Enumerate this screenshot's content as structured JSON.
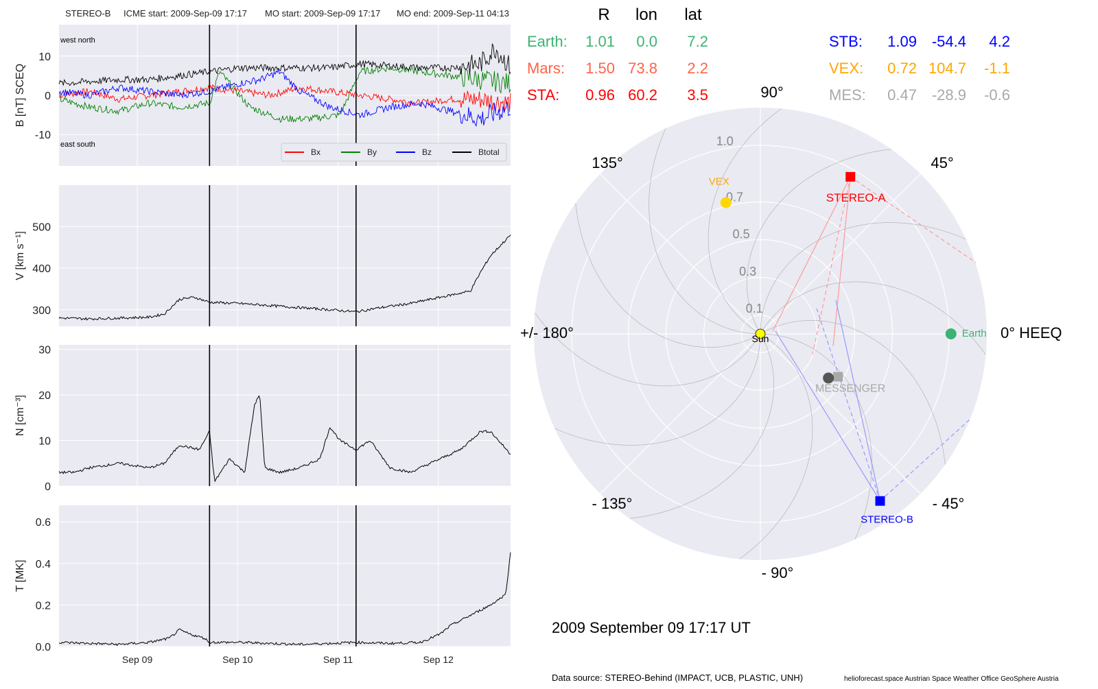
{
  "header": {
    "spacecraft": "STEREO-B",
    "icme_start": "ICME start: 2009-Sep-09 17:17",
    "mo_start": "MO start: 2009-Sep-09 17:17",
    "mo_end": "MO end: 2009-Sep-11 04:13"
  },
  "footer": {
    "date_label": "2009 September 09  17:17 UT",
    "data_source": "Data source: STEREO-Behind (IMPACT, UCB, PLASTIC, UNH)",
    "credits": "helioforecast.space   Austrian Space Weather Office   GeoSphere Austria"
  },
  "colors": {
    "panel_bg": "#eaeaf2",
    "bx": "#ff0000",
    "by": "#008000",
    "bz": "#0000ff",
    "btotal": "#000000",
    "earth": "#3cb371",
    "mars": "#ff6347",
    "sta": "#ff0000",
    "stb": "#0000ff",
    "vex": "#ffa500",
    "mes": "#a9a9a9",
    "sun": "#ffff00"
  },
  "position_table": {
    "headers": [
      "R",
      "lon",
      "lat"
    ],
    "left": [
      {
        "name": "Earth:",
        "r": "1.01",
        "lon": "0.0",
        "lat": "7.2",
        "color": "#3cb371"
      },
      {
        "name": "Mars:",
        "r": "1.50",
        "lon": "73.8",
        "lat": "2.2",
        "color": "#ff6347"
      },
      {
        "name": "STA:",
        "r": "0.96",
        "lon": "60.2",
        "lat": "3.5",
        "color": "#ff0000"
      }
    ],
    "right": [
      {
        "name": "STB:",
        "r": "1.09",
        "lon": "-54.4",
        "lat": "4.2",
        "color": "#0000ff"
      },
      {
        "name": "VEX:",
        "r": "0.72",
        "lon": "104.7",
        "lat": "-1.1",
        "color": "#ffa500"
      },
      {
        "name": "MES:",
        "r": "0.47",
        "lon": "-28.9",
        "lat": "-0.6",
        "color": "#a9a9a9"
      }
    ]
  },
  "polar": {
    "angle_labels": [
      {
        "deg": 90,
        "text": "90°"
      },
      {
        "deg": 45,
        "text": "45°"
      },
      {
        "deg": 0,
        "text": "0° HEEQ"
      },
      {
        "deg": -45,
        "text": "- 45°"
      },
      {
        "deg": -90,
        "text": "- 90°"
      },
      {
        "deg": -135,
        "text": "- 135°"
      },
      {
        "deg": 180,
        "text": "+/- 180°"
      },
      {
        "deg": 135,
        "text": "135°"
      }
    ],
    "r_labels": [
      "0.1",
      "0.3",
      "0.5",
      "0.7",
      "1.0"
    ],
    "r_ticks": [
      0.1,
      0.3,
      0.5,
      0.7,
      1.0
    ],
    "r_max": 1.2,
    "bodies": [
      {
        "name": "Sun",
        "label": "Sun",
        "r": 0,
        "lon": 0,
        "shape": "circle",
        "color": "#ffff00",
        "text_color": "#000000"
      },
      {
        "name": "Earth",
        "label": "Earth",
        "r": 1.01,
        "lon": 0.0,
        "shape": "circle",
        "color": "#3cb371",
        "text_color": "#3cb371"
      },
      {
        "name": "STEREO-A",
        "label": "STEREO-A",
        "r": 0.96,
        "lon": 60.2,
        "shape": "square",
        "color": "#ff0000",
        "text_color": "#ff0000"
      },
      {
        "name": "STEREO-B",
        "label": "STEREO-B",
        "r": 1.09,
        "lon": -54.4,
        "shape": "square",
        "color": "#0000ff",
        "text_color": "#0000ff"
      },
      {
        "name": "VEX",
        "label": "VEX",
        "r": 0.72,
        "lon": 104.7,
        "shape": "circle",
        "color": "#ffd700",
        "text_color": "#ffa500"
      },
      {
        "name": "MESSENGER",
        "label": "MESSENGER",
        "r": 0.47,
        "lon": -28.9,
        "shape": "square",
        "color": "#a9a9a9",
        "text_color": "#a9a9a9"
      },
      {
        "name": "Mercury",
        "label": "",
        "r": 0.43,
        "lon": -33,
        "shape": "circle",
        "color": "#555555",
        "text_color": "#555555"
      }
    ]
  },
  "chart_data": [
    {
      "type": "line",
      "title": "STEREO-B    ICME start: 2009-Sep-09 17:17    MO start: 2009-Sep-09 17:17    MO end: 2009-Sep-11 04:13",
      "ylabel": "B [nT] SCEQ",
      "ylim": [
        -18,
        18
      ],
      "yticks": [
        10,
        0,
        -10
      ],
      "xlim": [
        0,
        4.5
      ],
      "xticks": [
        {
          "v": 0.78,
          "label": "Sep 09"
        },
        {
          "v": 1.78,
          "label": "Sep 10"
        },
        {
          "v": 2.78,
          "label": "Sep 11"
        },
        {
          "v": 3.78,
          "label": "Sep 12"
        }
      ],
      "vlines": [
        1.5,
        2.96
      ],
      "legend": [
        "Bx",
        "By",
        "Bz",
        "Btotal"
      ],
      "annotations": [
        "west    north",
        "east    south"
      ],
      "series": [
        {
          "name": "Bx",
          "color": "#ff0000",
          "x": [
            0,
            0.3,
            0.6,
            0.9,
            1.2,
            1.5,
            1.8,
            2.1,
            2.4,
            2.7,
            3.0,
            3.3,
            3.6,
            3.9,
            4.2,
            4.5
          ],
          "y": [
            0,
            1,
            -1,
            0,
            1,
            2,
            1,
            0,
            2,
            1,
            0,
            -1,
            -2,
            -1,
            -1,
            -2
          ]
        },
        {
          "name": "By",
          "color": "#008000",
          "x": [
            0,
            0.3,
            0.6,
            0.9,
            1.2,
            1.5,
            1.6,
            1.9,
            2.2,
            2.5,
            2.8,
            3.0,
            3.3,
            3.6,
            3.9,
            4.2,
            4.5
          ],
          "y": [
            -1,
            -3,
            -4,
            -2,
            -3,
            -2,
            6,
            -3,
            -6,
            -6,
            -5,
            6,
            7,
            6,
            5,
            4,
            3
          ]
        },
        {
          "name": "Bz",
          "color": "#0000ff",
          "x": [
            0,
            0.3,
            0.6,
            0.9,
            1.2,
            1.5,
            1.8,
            2.0,
            2.2,
            2.4,
            2.7,
            3.0,
            3.3,
            3.6,
            3.9,
            4.2,
            4.5
          ],
          "y": [
            1,
            0,
            2,
            1,
            0,
            1,
            3,
            4,
            6,
            1,
            -3,
            -5,
            -3,
            -2,
            -4,
            -6,
            -3
          ]
        },
        {
          "name": "Btotal",
          "color": "#000000",
          "x": [
            0,
            0.3,
            0.6,
            0.9,
            1.2,
            1.5,
            1.8,
            2.1,
            2.4,
            2.7,
            3.0,
            3.3,
            3.6,
            3.9,
            4.2,
            4.35,
            4.5
          ],
          "y": [
            3,
            3.5,
            4,
            4,
            5,
            6,
            7,
            7,
            7,
            7,
            8,
            7.5,
            7,
            7,
            8,
            12,
            7
          ]
        }
      ]
    },
    {
      "type": "line",
      "ylabel": "V [km s⁻¹]",
      "ylim": [
        260,
        600
      ],
      "yticks": [
        500,
        400,
        300
      ],
      "xlim": [
        0,
        4.5
      ],
      "xticks": [
        {
          "v": 0.78
        },
        {
          "v": 1.78
        },
        {
          "v": 2.78
        },
        {
          "v": 3.78
        }
      ],
      "vlines": [
        1.5,
        2.96
      ],
      "series": [
        {
          "name": "V",
          "color": "#000000",
          "x": [
            0,
            0.3,
            0.6,
            0.9,
            1.05,
            1.2,
            1.35,
            1.5,
            1.8,
            2.1,
            2.4,
            2.7,
            2.96,
            3.2,
            3.5,
            3.8,
            4.1,
            4.2,
            4.3,
            4.4,
            4.5
          ],
          "y": [
            280,
            278,
            280,
            282,
            290,
            325,
            330,
            318,
            315,
            310,
            305,
            300,
            295,
            305,
            315,
            330,
            345,
            390,
            430,
            455,
            480
          ]
        }
      ]
    },
    {
      "type": "line",
      "ylabel": "N [cm⁻³]",
      "ylim": [
        0,
        31
      ],
      "yticks": [
        30,
        20,
        10,
        0
      ],
      "xlim": [
        0,
        4.5
      ],
      "xticks": [
        {
          "v": 0.78
        },
        {
          "v": 1.78
        },
        {
          "v": 2.78
        },
        {
          "v": 3.78
        }
      ],
      "vlines": [
        1.5,
        2.96
      ],
      "series": [
        {
          "name": "N",
          "color": "#000000",
          "x": [
            0,
            0.15,
            0.3,
            0.6,
            0.9,
            1.05,
            1.2,
            1.4,
            1.5,
            1.55,
            1.7,
            1.85,
            1.95,
            2.0,
            2.05,
            2.2,
            2.4,
            2.6,
            2.7,
            2.8,
            2.96,
            3.1,
            3.3,
            3.5,
            3.8,
            4.0,
            4.2,
            4.3,
            4.5
          ],
          "y": [
            3,
            3,
            4,
            5,
            4,
            5,
            9,
            8,
            12,
            1,
            6,
            3,
            18,
            20,
            4,
            3,
            4,
            6,
            13,
            10,
            8,
            10,
            4,
            3,
            6,
            8,
            12,
            12,
            7
          ]
        }
      ]
    },
    {
      "type": "line",
      "ylabel": "T [MK]",
      "ylim": [
        0,
        0.68
      ],
      "yticks": [
        0.6,
        0.4,
        0.2,
        0.0
      ],
      "xlim": [
        0,
        4.5
      ],
      "xticks": [
        {
          "v": 0.78,
          "label": "Sep 09"
        },
        {
          "v": 1.78,
          "label": "Sep 10"
        },
        {
          "v": 2.78,
          "label": "Sep 11"
        },
        {
          "v": 3.78,
          "label": "Sep 12"
        }
      ],
      "vlines": [
        1.5,
        2.96
      ],
      "series": [
        {
          "name": "T",
          "color": "#000000",
          "x": [
            0,
            0.3,
            0.6,
            0.9,
            1.1,
            1.2,
            1.3,
            1.45,
            1.5,
            1.8,
            2.1,
            2.4,
            2.7,
            2.96,
            3.3,
            3.6,
            3.8,
            3.9,
            4.1,
            4.3,
            4.45,
            4.5
          ],
          "y": [
            0.02,
            0.015,
            0.01,
            0.02,
            0.04,
            0.08,
            0.06,
            0.04,
            0.02,
            0.02,
            0.015,
            0.01,
            0.015,
            0.02,
            0.015,
            0.02,
            0.06,
            0.1,
            0.15,
            0.2,
            0.25,
            0.45
          ]
        }
      ]
    }
  ]
}
